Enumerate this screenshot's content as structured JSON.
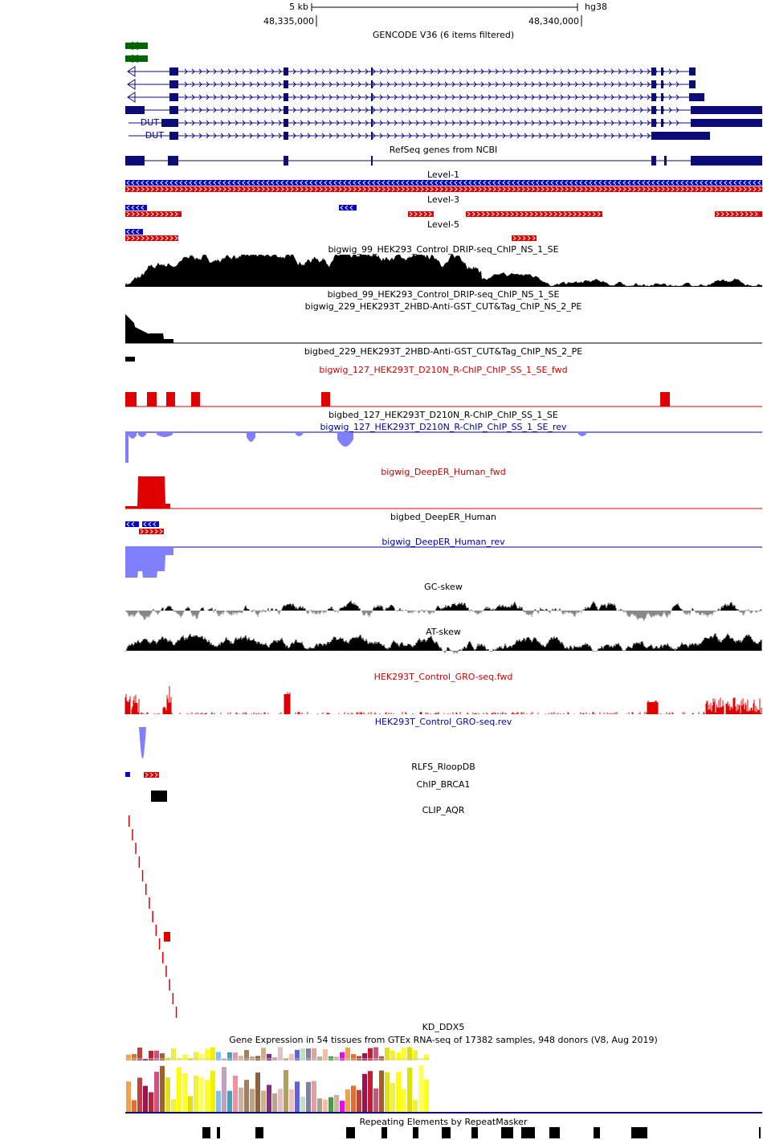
{
  "ruler": {
    "scale": "5 kb",
    "assembly": "hg38",
    "positions": [
      "48,335,000",
      "48,340,000"
    ]
  },
  "gene_labels": [
    "DUT",
    "DUT"
  ],
  "tracks": [
    "GENCODE V36 (6 items filtered)",
    "RefSeq genes from NCBI",
    "Level-1",
    "Level-3",
    "Level-5",
    "bigwig_99_HEK293_Control_DRIP-seq_ChIP_NS_1_SE",
    "bigbed_99_HEK293_Control_DRIP-seq_ChIP_NS_1_SE",
    "bigwig_229_HEK293T_2HBD-Anti-GST_CUT&Tag_ChIP_NS_2_PE",
    "bigbed_229_HEK293T_2HBD-Anti-GST_CUT&Tag_ChIP_NS_2_PE",
    "bigwig_127_HEK293T_D210N_R-ChIP_ChIP_SS_1_SE_fwd",
    "bigbed_127_HEK293T_D210N_R-ChIP_ChIP_SS_1_SE",
    "bigwig_127_HEK293T_D210N_R-ChIP_ChIP_SS_1_SE_rev",
    "bigwig_DeepER_Human_fwd",
    "bigbed_DeepER_Human",
    "bigwig_DeepER_Human_rev",
    "GC-skew",
    "AT-skew",
    "HEK293T_Control_GRO-seq.fwd",
    "HEK293T_Control_GRO-seq.rev",
    "RLFS_RloopDB",
    "ChIP_BRCA1",
    "CLIP_AQR",
    "KD_DDX5",
    "Gene Expression in 54 tissues from GTEx RNA-seq of 17382 samples, 948 donors (V8, Aug 2019)",
    "Repeating Elements by RepeatMasker"
  ]
}
